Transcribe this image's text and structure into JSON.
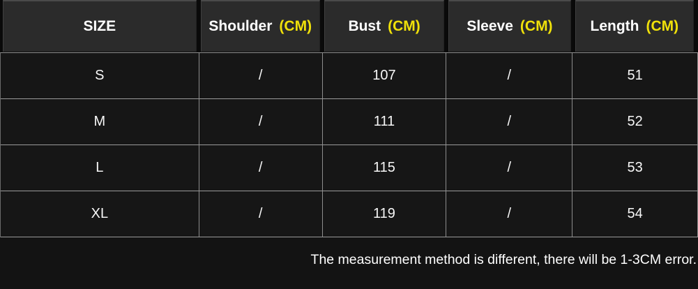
{
  "chart_data": {
    "type": "table",
    "columns": [
      "SIZE",
      "Shoulder (CM)",
      "Bust (CM)",
      "Sleeve (CM)",
      "Length (CM)"
    ],
    "rows": [
      [
        "S",
        "/",
        "107",
        "/",
        "51"
      ],
      [
        "M",
        "/",
        "111",
        "/",
        "52"
      ],
      [
        "L",
        "/",
        "115",
        "/",
        "53"
      ],
      [
        "XL",
        "/",
        "119",
        "/",
        "54"
      ]
    ],
    "note": "The measurement method is different, there will be 1-3CM error.",
    "unit": "CM"
  },
  "table": {
    "columns": [
      {
        "label": "SIZE",
        "unit": ""
      },
      {
        "label": "Shoulder",
        "unit": "(CM)"
      },
      {
        "label": "Bust",
        "unit": "(CM)"
      },
      {
        "label": "Sleeve",
        "unit": "(CM)"
      },
      {
        "label": "Length",
        "unit": "(CM)"
      }
    ],
    "rows": [
      [
        "S",
        "/",
        "107",
        "/",
        "51"
      ],
      [
        "M",
        "/",
        "111",
        "/",
        "52"
      ],
      [
        "L",
        "/",
        "115",
        "/",
        "53"
      ],
      [
        "XL",
        "/",
        "119",
        "/",
        "54"
      ]
    ]
  },
  "note": "The measurement method is different, there will be 1-3CM error.",
  "colors": {
    "accent_yellow": "#f0e10a",
    "header_bg": "#2b2b2b",
    "body_bg": "#161616",
    "gridline": "#909090",
    "background": "#0a0a0a",
    "text": "#ffffff"
  }
}
